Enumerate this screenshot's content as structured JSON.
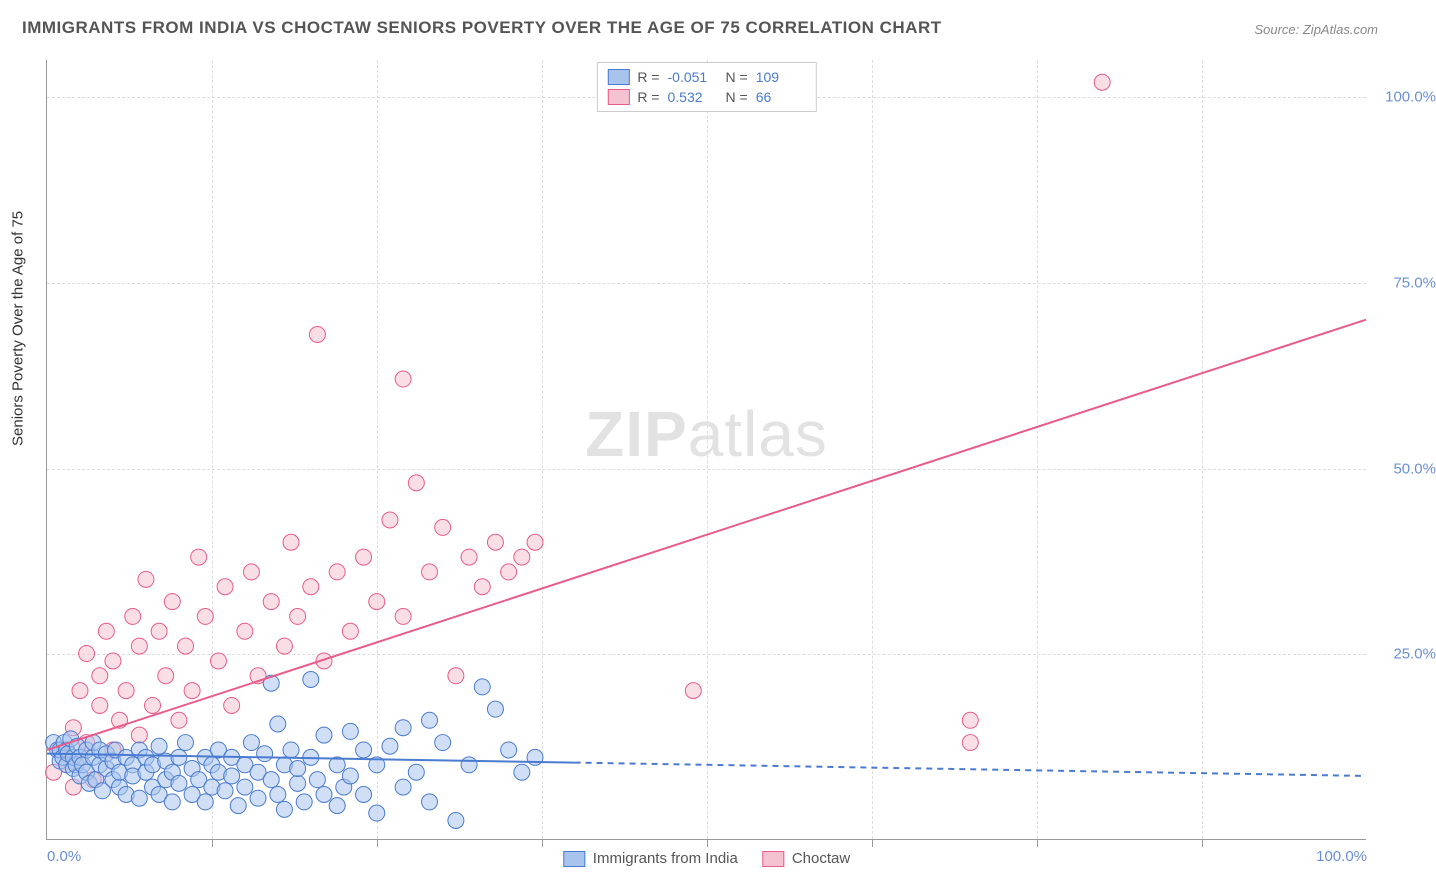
{
  "title": "IMMIGRANTS FROM INDIA VS CHOCTAW SENIORS POVERTY OVER THE AGE OF 75 CORRELATION CHART",
  "source": "Source: ZipAtlas.com",
  "watermark_prefix": "ZIP",
  "watermark_suffix": "atlas",
  "y_axis_label": "Seniors Poverty Over the Age of 75",
  "chart": {
    "type": "scatter",
    "background_color": "#ffffff",
    "grid_color": "#dddddd",
    "axis_color": "#999999",
    "xlim": [
      0,
      100
    ],
    "ylim": [
      0,
      105
    ],
    "x_ticks": [
      0,
      100
    ],
    "x_tick_labels": [
      "0.0%",
      "100.0%"
    ],
    "x_minor_ticks": [
      12.5,
      25,
      37.5,
      50,
      62.5,
      75,
      87.5
    ],
    "y_ticks": [
      25,
      50,
      75,
      100
    ],
    "y_tick_labels": [
      "25.0%",
      "50.0%",
      "75.0%",
      "100.0%"
    ],
    "marker_radius": 8,
    "marker_opacity": 0.55,
    "line_width": 2,
    "dash_pattern": "6,5",
    "title_fontsize": 17,
    "label_fontsize": 15,
    "tick_fontsize": 15,
    "tick_color": "#6b8fd4"
  },
  "series": [
    {
      "name": "Immigrants from India",
      "color_fill": "#a9c4ec",
      "color_stroke": "#4a7bd0",
      "r_value": "-0.051",
      "n_value": "109",
      "trend": {
        "x1": 0,
        "y1": 11.5,
        "x2": 100,
        "y2": 8.5,
        "solid_until_x": 40
      },
      "points": [
        [
          0.5,
          13
        ],
        [
          0.8,
          12
        ],
        [
          1,
          10.5
        ],
        [
          1,
          12
        ],
        [
          1.2,
          11
        ],
        [
          1.3,
          13
        ],
        [
          1.5,
          10
        ],
        [
          1.5,
          12
        ],
        [
          1.6,
          11.5
        ],
        [
          1.8,
          13.5
        ],
        [
          2,
          9.5
        ],
        [
          2,
          11
        ],
        [
          2.2,
          10
        ],
        [
          2.3,
          12.5
        ],
        [
          2.5,
          8.5
        ],
        [
          2.5,
          11
        ],
        [
          2.7,
          10
        ],
        [
          3,
          12
        ],
        [
          3,
          9
        ],
        [
          3.2,
          7.5
        ],
        [
          3.5,
          11
        ],
        [
          3.5,
          13
        ],
        [
          3.7,
          8
        ],
        [
          4,
          10
        ],
        [
          4,
          12
        ],
        [
          4.2,
          6.5
        ],
        [
          4.5,
          9.5
        ],
        [
          4.5,
          11.5
        ],
        [
          5,
          8
        ],
        [
          5,
          10.5
        ],
        [
          5.2,
          12
        ],
        [
          5.5,
          7
        ],
        [
          5.5,
          9
        ],
        [
          6,
          11
        ],
        [
          6,
          6
        ],
        [
          6.5,
          10
        ],
        [
          6.5,
          8.5
        ],
        [
          7,
          12
        ],
        [
          7,
          5.5
        ],
        [
          7.5,
          9
        ],
        [
          7.5,
          11
        ],
        [
          8,
          7
        ],
        [
          8,
          10
        ],
        [
          8.5,
          6
        ],
        [
          8.5,
          12.5
        ],
        [
          9,
          8
        ],
        [
          9,
          10.5
        ],
        [
          9.5,
          5
        ],
        [
          9.5,
          9
        ],
        [
          10,
          11
        ],
        [
          10,
          7.5
        ],
        [
          10.5,
          13
        ],
        [
          11,
          6
        ],
        [
          11,
          9.5
        ],
        [
          11.5,
          8
        ],
        [
          12,
          11
        ],
        [
          12,
          5
        ],
        [
          12.5,
          10
        ],
        [
          12.5,
          7
        ],
        [
          13,
          9
        ],
        [
          13,
          12
        ],
        [
          13.5,
          6.5
        ],
        [
          14,
          8.5
        ],
        [
          14,
          11
        ],
        [
          14.5,
          4.5
        ],
        [
          15,
          10
        ],
        [
          15,
          7
        ],
        [
          15.5,
          13
        ],
        [
          16,
          9
        ],
        [
          16,
          5.5
        ],
        [
          16.5,
          11.5
        ],
        [
          17,
          8
        ],
        [
          17,
          21
        ],
        [
          17.5,
          6
        ],
        [
          17.5,
          15.5
        ],
        [
          18,
          10
        ],
        [
          18,
          4
        ],
        [
          18.5,
          12
        ],
        [
          19,
          7.5
        ],
        [
          19,
          9.5
        ],
        [
          19.5,
          5
        ],
        [
          20,
          11
        ],
        [
          20,
          21.5
        ],
        [
          20.5,
          8
        ],
        [
          21,
          14
        ],
        [
          21,
          6
        ],
        [
          22,
          10
        ],
        [
          22,
          4.5
        ],
        [
          22.5,
          7
        ],
        [
          23,
          8.5
        ],
        [
          23,
          14.5
        ],
        [
          24,
          6
        ],
        [
          24,
          12
        ],
        [
          25,
          3.5
        ],
        [
          25,
          10
        ],
        [
          26,
          12.5
        ],
        [
          27,
          7
        ],
        [
          27,
          15
        ],
        [
          28,
          9
        ],
        [
          29,
          5
        ],
        [
          29,
          16
        ],
        [
          30,
          13
        ],
        [
          31,
          2.5
        ],
        [
          32,
          10
        ],
        [
          33,
          20.5
        ],
        [
          34,
          17.5
        ],
        [
          35,
          12
        ],
        [
          36,
          9
        ],
        [
          37,
          11
        ]
      ]
    },
    {
      "name": "Choctaw",
      "color_fill": "#f5c2d1",
      "color_stroke": "#e85b8a",
      "r_value": "0.532",
      "n_value": "66",
      "trend": {
        "x1": 0,
        "y1": 12,
        "x2": 100,
        "y2": 70,
        "solid_until_x": 100
      },
      "points": [
        [
          0.5,
          9
        ],
        [
          1,
          12
        ],
        [
          1.5,
          10
        ],
        [
          2,
          15
        ],
        [
          2,
          7
        ],
        [
          2.5,
          20
        ],
        [
          3,
          13
        ],
        [
          3,
          25
        ],
        [
          3.5,
          8
        ],
        [
          4,
          22
        ],
        [
          4,
          18
        ],
        [
          4.5,
          28
        ],
        [
          5,
          12
        ],
        [
          5,
          24
        ],
        [
          5.5,
          16
        ],
        [
          6,
          20
        ],
        [
          6.5,
          30
        ],
        [
          7,
          14
        ],
        [
          7,
          26
        ],
        [
          7.5,
          35
        ],
        [
          8,
          18
        ],
        [
          8.5,
          28
        ],
        [
          9,
          22
        ],
        [
          9.5,
          32
        ],
        [
          10,
          16
        ],
        [
          10.5,
          26
        ],
        [
          11,
          20
        ],
        [
          11.5,
          38
        ],
        [
          12,
          30
        ],
        [
          13,
          24
        ],
        [
          13.5,
          34
        ],
        [
          14,
          18
        ],
        [
          15,
          28
        ],
        [
          15.5,
          36
        ],
        [
          16,
          22
        ],
        [
          17,
          32
        ],
        [
          18,
          26
        ],
        [
          18.5,
          40
        ],
        [
          19,
          30
        ],
        [
          20,
          34
        ],
        [
          20.5,
          68
        ],
        [
          21,
          24
        ],
        [
          22,
          36
        ],
        [
          23,
          28
        ],
        [
          24,
          38
        ],
        [
          25,
          32
        ],
        [
          26,
          43
        ],
        [
          27,
          62
        ],
        [
          27,
          30
        ],
        [
          28,
          48
        ],
        [
          29,
          36
        ],
        [
          30,
          42
        ],
        [
          31,
          22
        ],
        [
          32,
          38
        ],
        [
          33,
          34
        ],
        [
          34,
          40
        ],
        [
          35,
          36
        ],
        [
          36,
          38
        ],
        [
          37,
          40
        ],
        [
          49,
          20
        ],
        [
          70,
          13
        ],
        [
          70,
          16
        ],
        [
          80,
          102
        ]
      ]
    }
  ],
  "legend_top": {
    "r_label": "R =",
    "n_label": "N ="
  },
  "legend_bottom": {
    "items": [
      "Immigrants from India",
      "Choctaw"
    ]
  }
}
